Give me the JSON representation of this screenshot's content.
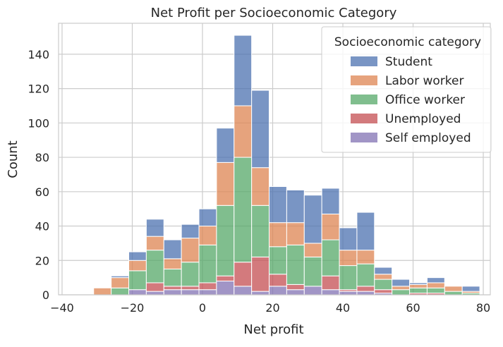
{
  "chart_data": {
    "type": "bar",
    "stacked": true,
    "title": "Net Profit per Socioeconomic Category",
    "xlabel": "Net profit",
    "ylabel": "Count",
    "xlim": [
      -41,
      82
    ],
    "ylim": [
      0,
      158
    ],
    "xticks": [
      -40,
      -20,
      0,
      20,
      40,
      60,
      80
    ],
    "yticks": [
      0,
      20,
      40,
      60,
      80,
      100,
      120,
      140
    ],
    "grid": true,
    "legend": {
      "title": "Socioeconomic category",
      "placement": "top-right",
      "order": [
        "Student",
        "Labor worker",
        "Office worker",
        "Unemployed",
        "Self employed"
      ]
    },
    "bin_width": 5,
    "bin_starts": [
      -36,
      -31,
      -26,
      -21,
      -16,
      -11,
      -6,
      -1,
      4,
      9,
      14,
      19,
      24,
      29,
      34,
      39,
      44,
      49,
      54,
      59,
      64,
      69,
      74
    ],
    "stack_order": [
      "Self employed",
      "Unemployed",
      "Office worker",
      "Labor worker",
      "Student"
    ],
    "series": [
      {
        "name": "Self employed",
        "color": "#8172b3",
        "values": [
          0,
          0,
          0,
          3,
          2,
          3,
          3,
          3,
          8,
          5,
          2,
          5,
          3,
          5,
          3,
          2,
          2,
          1,
          0,
          0,
          0,
          0,
          0
        ]
      },
      {
        "name": "Unemployed",
        "color": "#c44e52",
        "values": [
          0,
          0,
          0,
          0,
          5,
          2,
          2,
          4,
          3,
          14,
          20,
          7,
          3,
          0,
          8,
          1,
          3,
          2,
          0,
          1,
          1,
          0,
          0
        ]
      },
      {
        "name": "Office worker",
        "color": "#55a868",
        "values": [
          0,
          0,
          4,
          11,
          19,
          10,
          14,
          22,
          41,
          61,
          30,
          16,
          23,
          17,
          21,
          14,
          13,
          6,
          3,
          3,
          3,
          2,
          1
        ]
      },
      {
        "name": "Labor worker",
        "color": "#dd8452",
        "values": [
          0,
          4,
          6,
          6,
          8,
          6,
          14,
          11,
          25,
          30,
          22,
          14,
          13,
          8,
          15,
          9,
          8,
          3,
          2,
          2,
          3,
          3,
          1
        ]
      },
      {
        "name": "Student",
        "color": "#4c72b0",
        "values": [
          0,
          0,
          1,
          5,
          10,
          11,
          8,
          10,
          20,
          41,
          45,
          21,
          19,
          28,
          15,
          13,
          22,
          4,
          4,
          1,
          3,
          0,
          3
        ]
      }
    ]
  }
}
